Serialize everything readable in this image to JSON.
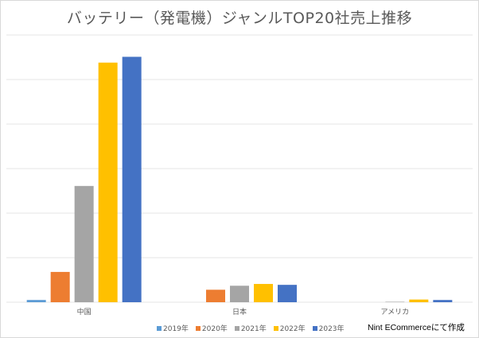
{
  "chart_data": {
    "type": "bar",
    "title": "バッテリー（発電機）ジャンルTOP20社売上推移",
    "xlabel": "",
    "ylabel": "",
    "ylim": [
      0,
      6
    ],
    "grid": true,
    "y_tick_labels_shown": false,
    "legend_position": "bottom",
    "categories": [
      "中国",
      "日本",
      "アメリカ"
    ],
    "series": [
      {
        "name": "2019年",
        "color": "#5b9bd5",
        "values": [
          0.05,
          0,
          0
        ]
      },
      {
        "name": "2020年",
        "color": "#ed7d31",
        "values": [
          0.68,
          0.28,
          0
        ]
      },
      {
        "name": "2021年",
        "color": "#a5a5a5",
        "values": [
          2.61,
          0.37,
          0.01
        ]
      },
      {
        "name": "2022年",
        "color": "#ffc000",
        "values": [
          5.38,
          0.41,
          0.06
        ]
      },
      {
        "name": "2023年",
        "color": "#4472c4",
        "values": [
          5.51,
          0.39,
          0.05
        ]
      }
    ],
    "annotations": [
      "Nint ECommerceにて作成"
    ]
  }
}
